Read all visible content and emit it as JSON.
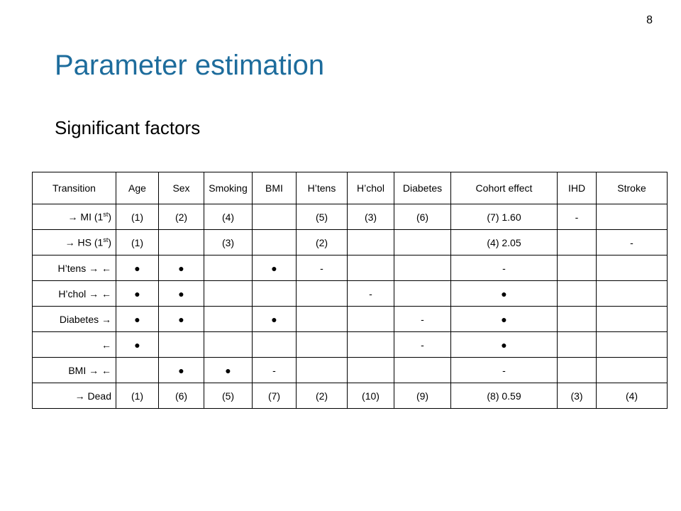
{
  "page_number": "8",
  "title": "Parameter estimation",
  "subtitle": "Significant factors",
  "table": {
    "header": [
      "Transition",
      "Age",
      "Sex",
      "Smoking",
      "BMI",
      "H’tens",
      "H’chol",
      "Diabetes",
      "Cohort effect",
      "IHD",
      "Stroke"
    ],
    "rows": [
      {
        "transition": {
          "text": "→ MI (1",
          "sup": "st",
          "tail": ")"
        },
        "cells": [
          "(1)",
          "(2)",
          "(4)",
          null,
          "(5)",
          "(3)",
          "(6)",
          "(7)   1.60",
          "-",
          null
        ]
      },
      {
        "transition": {
          "text": "→ HS (1",
          "sup": "st",
          "tail": ")"
        },
        "cells": [
          "(1)",
          null,
          "(3)",
          null,
          "(2)",
          null,
          null,
          "(4)   2.05",
          null,
          "-"
        ]
      },
      {
        "transition": {
          "text": "H’tens → ←"
        },
        "cells": [
          "●",
          "●",
          null,
          "●",
          "-",
          null,
          null,
          "-",
          null,
          null
        ]
      },
      {
        "transition": {
          "text": "H’chol  → ←"
        },
        "cells": [
          "●",
          "●",
          null,
          null,
          null,
          "-",
          null,
          "●",
          null,
          null
        ]
      },
      {
        "transition": {
          "text": "Diabetes →"
        },
        "cells": [
          "●",
          "●",
          null,
          "●",
          null,
          null,
          "-",
          "●",
          null,
          null
        ]
      },
      {
        "transition": {
          "text": "←"
        },
        "cells": [
          "●",
          null,
          null,
          null,
          null,
          null,
          "-",
          "●",
          null,
          null
        ]
      },
      {
        "transition": {
          "text": "BMI → ←"
        },
        "cells": [
          null,
          "●",
          "●",
          "-",
          null,
          null,
          null,
          "-",
          null,
          null
        ]
      },
      {
        "transition": {
          "text": "→ Dead"
        },
        "cells": [
          "(1)",
          "(6)",
          "(5)",
          "(7)",
          "(2)",
          "(10)",
          "(9)",
          "(8)   0.59",
          "(3)",
          "(4)"
        ]
      }
    ]
  }
}
